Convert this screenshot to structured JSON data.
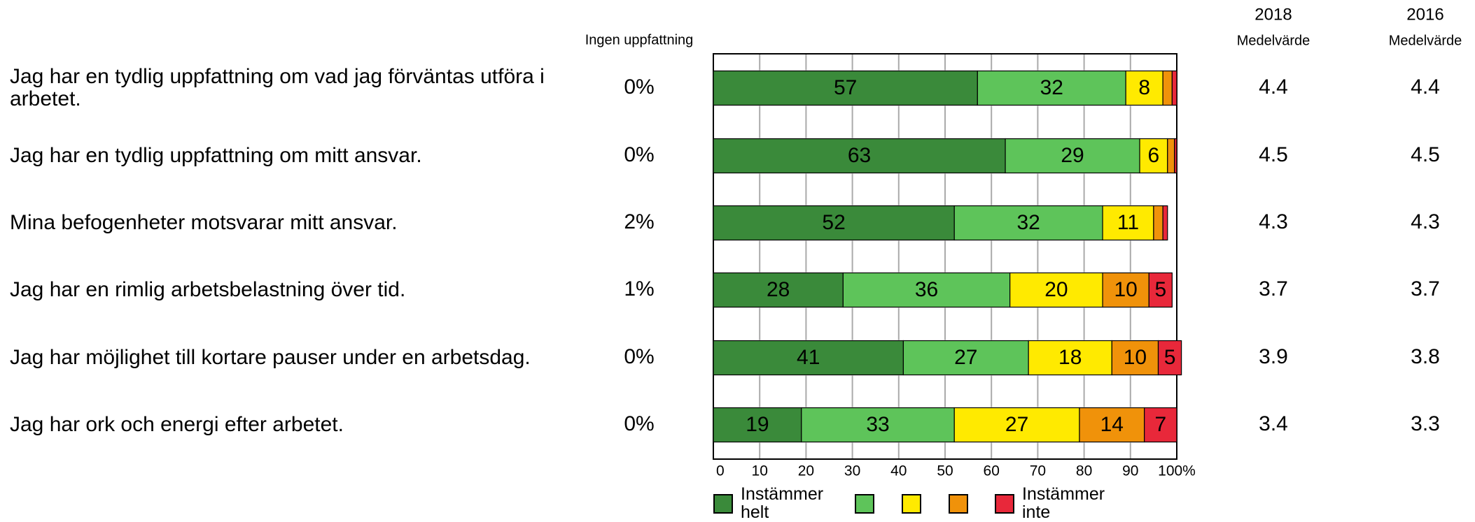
{
  "chart_data": {
    "type": "stacked_bar_horizontal",
    "categories": [
      "Jag har en tydlig uppfattning om vad jag förväntas utföra i arbetet.",
      "Jag har en tydlig uppfattning om mitt ansvar.",
      "Mina befogenheter motsvarar mitt ansvar.",
      "Jag har en rimlig arbetsbelastning över tid.",
      "Jag har möjlighet till kortare pauser under en arbetsdag.",
      "Jag har ork och energi efter arbetet."
    ],
    "series": [
      {
        "name": "Instämmer helt",
        "color": "#3a8a3a",
        "values": [
          57,
          63,
          52,
          28,
          41,
          19
        ],
        "value_labels": [
          "57",
          "63",
          "52",
          "28",
          "41",
          "19"
        ]
      },
      {
        "name": null,
        "color": "#5ec45a",
        "values": [
          32,
          29,
          32,
          36,
          27,
          33
        ],
        "value_labels": [
          "32",
          "29",
          "32",
          "36",
          "27",
          "33"
        ]
      },
      {
        "name": null,
        "color": "#ffea00",
        "values": [
          8,
          6,
          11,
          20,
          18,
          27
        ],
        "value_labels": [
          "8",
          "6",
          "11",
          "20",
          "18",
          "27"
        ]
      },
      {
        "name": null,
        "color": "#f0920a",
        "values": [
          2,
          1.5,
          2,
          10,
          10,
          14
        ],
        "value_labels": [
          null,
          null,
          null,
          "10",
          "10",
          "14"
        ]
      },
      {
        "name": "Instämmer inte",
        "color": "#e8283a",
        "values": [
          1,
          0.5,
          1,
          5,
          5,
          7
        ],
        "value_labels": [
          null,
          null,
          null,
          "5",
          "5",
          "7"
        ]
      }
    ],
    "xlim": [
      0,
      100
    ],
    "xticks": [
      0,
      10,
      20,
      30,
      40,
      50,
      60,
      70,
      80,
      90,
      {
        "value": 100,
        "label": "100%"
      }
    ],
    "grid": true,
    "ingen_uppfattning": {
      "title": "Ingen uppfattning",
      "values": [
        0,
        0,
        2,
        1,
        0,
        0
      ],
      "value_labels": [
        "0%",
        "0%",
        "2%",
        "1%",
        "0%",
        "0%"
      ]
    },
    "means": [
      {
        "year": "2018",
        "label": "Medelvärde",
        "values": [
          4.4,
          4.5,
          4.3,
          3.7,
          3.9,
          3.4
        ]
      },
      {
        "year": "2016",
        "label": "Medelvärde",
        "values": [
          4.4,
          4.5,
          4.3,
          3.7,
          3.8,
          3.3
        ]
      }
    ]
  }
}
